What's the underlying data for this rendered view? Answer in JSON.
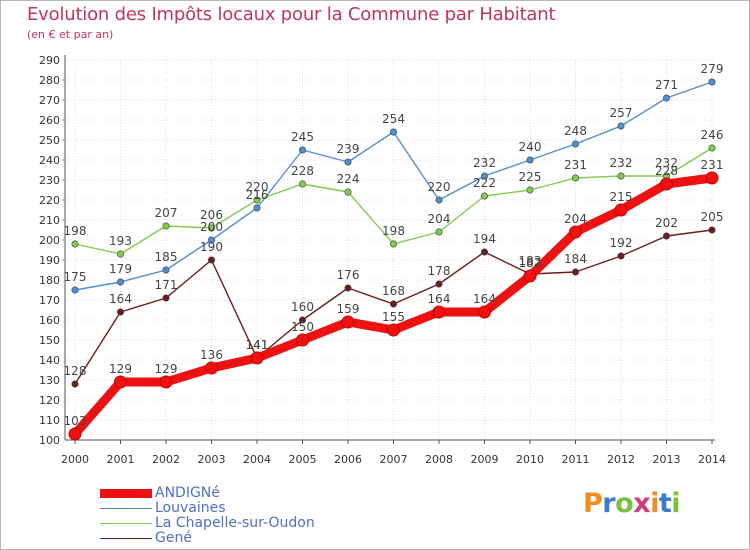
{
  "header": {
    "title": "Evolution des Impôts locaux pour la Commune par Habitant",
    "subtitle": "(en € et par an)"
  },
  "logo": {
    "text": "Proxiti",
    "colors": [
      "#f28c1e",
      "#3a7cd0",
      "#7fbf3f",
      "#d23b7a",
      "#f28c1e",
      "#3a7cd0",
      "#7fbf3f"
    ]
  },
  "chart_data": {
    "type": "line",
    "x": [
      "2000",
      "2001",
      "2002",
      "2003",
      "2004",
      "2005",
      "2006",
      "2007",
      "2008",
      "2009",
      "2010",
      "2011",
      "2012",
      "2013",
      "2014"
    ],
    "ylim": [
      100,
      290
    ],
    "yticks": [
      100,
      110,
      120,
      130,
      140,
      150,
      160,
      170,
      180,
      190,
      200,
      210,
      220,
      230,
      240,
      250,
      260,
      270,
      280,
      290
    ],
    "grid": true,
    "legend_position": "bottom-left",
    "series": [
      {
        "name": "Louvaines",
        "color": "#4f8fcf",
        "values": [
          175,
          179,
          185,
          200,
          216,
          245,
          239,
          254,
          220,
          232,
          240,
          248,
          257,
          271,
          279
        ],
        "labels": [
          "175",
          "179",
          "185",
          "200",
          "216",
          "245",
          "239",
          "254",
          "220",
          "232",
          "240",
          "248",
          "257",
          "271",
          "279"
        ]
      },
      {
        "name": "La Chapelle-sur-Oudon",
        "color": "#7fcc4f",
        "values": [
          198,
          193,
          207,
          206,
          220,
          228,
          224,
          198,
          204,
          222,
          225,
          231,
          232,
          232,
          246
        ],
        "labels": [
          "198",
          "193",
          "207",
          "206",
          "220",
          "228",
          "224",
          "198",
          "204",
          "222",
          "225",
          "231",
          "232",
          "232",
          "246"
        ]
      },
      {
        "name": "Gené",
        "color": "#6b1c1c",
        "values": [
          128,
          164,
          171,
          190,
          141,
          160,
          176,
          168,
          178,
          194,
          183,
          184,
          192,
          202,
          205
        ],
        "labels": [
          "128",
          "164",
          "171",
          "190",
          "141",
          "160",
          "176",
          "168",
          "178",
          "194",
          "183",
          "184",
          "192",
          "202",
          "205"
        ]
      },
      {
        "name": "ANDIGNé",
        "color": "#ee1111",
        "values": [
          103,
          129,
          129,
          136,
          141,
          150,
          159,
          155,
          164,
          164,
          182,
          204,
          215,
          228,
          231
        ],
        "labels": [
          "103",
          "129",
          "129",
          "136",
          "141",
          "150",
          "159",
          "155",
          "164",
          "164",
          "182",
          "204",
          "215",
          "228",
          "231"
        ]
      }
    ],
    "legend": [
      "ANDIGNé",
      "Louvaines",
      "La Chapelle-sur-Oudon",
      "Gené"
    ]
  }
}
